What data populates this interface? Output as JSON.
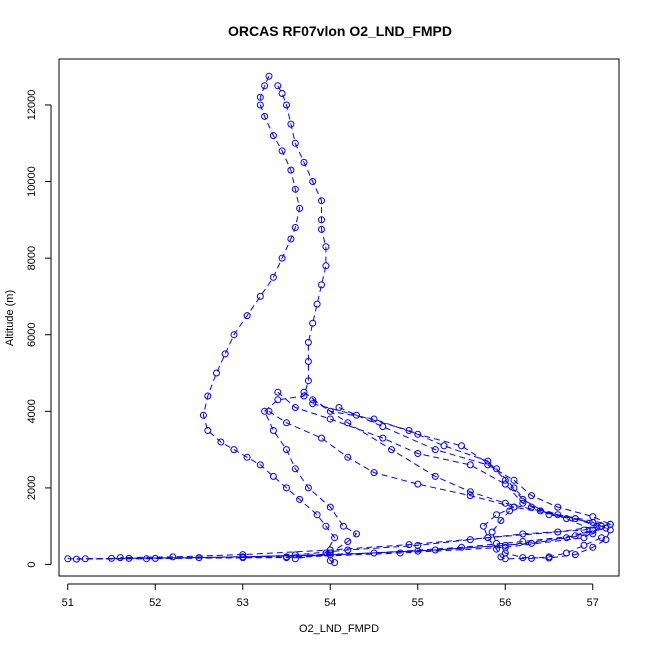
{
  "chart_data": {
    "type": "line",
    "title": "ORCAS RF07vlon O2_LND_FMPD",
    "xlabel": "O2_LND_FMPD",
    "ylabel": "Altitude (m)",
    "xlim": [
      50.9,
      57.3
    ],
    "ylim": [
      -300,
      13200
    ],
    "xticks": [
      51,
      52,
      53,
      54,
      55,
      56,
      57
    ],
    "yticks": [
      0,
      2000,
      4000,
      6000,
      8000,
      10000,
      12000
    ],
    "grid": false,
    "marker": "open-circle",
    "line_style": "dashed",
    "color": "#0000ff",
    "series": [
      {
        "values": [
          [
            53.3,
            12750
          ],
          [
            53.25,
            12500
          ],
          [
            53.2,
            12200
          ],
          [
            53.2,
            12000
          ],
          [
            53.25,
            11700
          ],
          [
            53.35,
            11200
          ],
          [
            53.45,
            10800
          ],
          [
            53.55,
            10300
          ],
          [
            53.6,
            9800
          ],
          [
            53.65,
            9300
          ],
          [
            53.6,
            8800
          ],
          [
            53.55,
            8500
          ],
          [
            53.45,
            8000
          ],
          [
            53.35,
            7500
          ],
          [
            53.2,
            7000
          ],
          [
            53.05,
            6500
          ],
          [
            52.9,
            6000
          ],
          [
            52.8,
            5500
          ],
          [
            52.7,
            5000
          ],
          [
            52.6,
            4400
          ],
          [
            52.55,
            3900
          ],
          [
            52.6,
            3500
          ],
          [
            52.75,
            3200
          ],
          [
            52.9,
            3000
          ],
          [
            53.05,
            2800
          ],
          [
            53.2,
            2600
          ],
          [
            53.35,
            2300
          ],
          [
            53.5,
            2000
          ],
          [
            53.65,
            1700
          ],
          [
            53.85,
            1300
          ],
          [
            53.95,
            1000
          ],
          [
            54.05,
            700
          ],
          [
            53.95,
            300
          ],
          [
            54.0,
            100
          ],
          [
            54.05,
            50
          ]
        ]
      },
      {
        "values": [
          [
            53.4,
            12500
          ],
          [
            53.45,
            12300
          ],
          [
            53.5,
            12000
          ],
          [
            53.55,
            11500
          ],
          [
            53.6,
            11000
          ],
          [
            53.7,
            10500
          ],
          [
            53.8,
            10000
          ],
          [
            53.9,
            9500
          ],
          [
            53.9,
            9000
          ],
          [
            53.9,
            8750
          ],
          [
            53.95,
            8300
          ],
          [
            53.95,
            7800
          ],
          [
            53.9,
            7300
          ],
          [
            53.85,
            6800
          ],
          [
            53.8,
            6300
          ],
          [
            53.75,
            5800
          ],
          [
            53.75,
            5300
          ],
          [
            53.75,
            4800
          ],
          [
            53.7,
            4400
          ],
          [
            53.4,
            4300
          ],
          [
            53.25,
            4000
          ],
          [
            53.35,
            3500
          ],
          [
            53.5,
            3000
          ],
          [
            53.6,
            2500
          ],
          [
            53.75,
            2000
          ],
          [
            54.0,
            1500
          ],
          [
            54.15,
            1000
          ],
          [
            54.3,
            800
          ],
          [
            54.2,
            600
          ],
          [
            54.0,
            300
          ],
          [
            53.6,
            150
          ]
        ]
      },
      {
        "values": [
          [
            53.7,
            4500
          ],
          [
            54.0,
            4000
          ],
          [
            54.5,
            3800
          ],
          [
            55.0,
            3400
          ],
          [
            55.5,
            3100
          ],
          [
            55.9,
            2500
          ],
          [
            56.1,
            2000
          ],
          [
            56.3,
            1500
          ],
          [
            56.7,
            1200
          ],
          [
            57.0,
            900
          ],
          [
            56.7,
            700
          ],
          [
            56.0,
            500
          ],
          [
            55.0,
            350
          ],
          [
            53.5,
            200
          ],
          [
            51.9,
            150
          ],
          [
            51.1,
            140
          ]
        ]
      },
      {
        "values": [
          [
            53.8,
            4200
          ],
          [
            54.3,
            3900
          ],
          [
            54.9,
            3500
          ],
          [
            55.3,
            3100
          ],
          [
            55.8,
            2700
          ],
          [
            56.0,
            2200
          ],
          [
            56.2,
            1700
          ],
          [
            56.5,
            1300
          ],
          [
            57.0,
            1100
          ],
          [
            57.15,
            950
          ],
          [
            56.8,
            750
          ],
          [
            56.2,
            600
          ],
          [
            55.5,
            450
          ],
          [
            54.5,
            300
          ],
          [
            53.0,
            200
          ],
          [
            51.7,
            160
          ],
          [
            51.0,
            150
          ]
        ]
      },
      {
        "values": [
          [
            53.4,
            4500
          ],
          [
            53.6,
            4100
          ],
          [
            54.0,
            3800
          ],
          [
            54.6,
            3300
          ],
          [
            55.0,
            2900
          ],
          [
            55.6,
            2600
          ],
          [
            56.0,
            2100
          ],
          [
            56.2,
            1600
          ],
          [
            56.6,
            1300
          ],
          [
            57.2,
            1050
          ],
          [
            57.0,
            800
          ],
          [
            56.3,
            550
          ],
          [
            55.2,
            380
          ],
          [
            54.0,
            250
          ],
          [
            52.5,
            180
          ],
          [
            51.5,
            160
          ]
        ]
      },
      {
        "values": [
          [
            53.3,
            4000
          ],
          [
            53.5,
            3700
          ],
          [
            53.9,
            3300
          ],
          [
            54.2,
            2800
          ],
          [
            54.5,
            2400
          ],
          [
            55.0,
            2100
          ],
          [
            55.6,
            1800
          ],
          [
            56.1,
            1500
          ],
          [
            56.8,
            1200
          ],
          [
            57.1,
            1000
          ],
          [
            56.9,
            700
          ],
          [
            56.0,
            450
          ],
          [
            54.8,
            300
          ],
          [
            53.5,
            180
          ],
          [
            52.0,
            160
          ],
          [
            51.2,
            150
          ]
        ]
      },
      {
        "values": [
          [
            53.8,
            4300
          ],
          [
            54.2,
            3700
          ],
          [
            54.7,
            3000
          ],
          [
            55.2,
            2300
          ],
          [
            55.6,
            1900
          ],
          [
            56.0,
            1600
          ],
          [
            56.4,
            1400
          ],
          [
            56.8,
            1200
          ],
          [
            57.05,
            1000
          ],
          [
            56.6,
            850
          ],
          [
            55.8,
            700
          ],
          [
            54.9,
            520
          ],
          [
            54.0,
            380
          ],
          [
            53.0,
            260
          ],
          [
            52.2,
            200
          ],
          [
            51.6,
            180
          ]
        ]
      },
      {
        "values": [
          [
            54.1,
            4100
          ],
          [
            54.6,
            3600
          ],
          [
            55.2,
            3000
          ],
          [
            55.8,
            2600
          ],
          [
            56.1,
            2200
          ],
          [
            56.3,
            1800
          ],
          [
            56.6,
            1500
          ],
          [
            57.0,
            1250
          ],
          [
            57.2,
            1050
          ],
          [
            56.9,
            900
          ],
          [
            56.2,
            800
          ],
          [
            55.6,
            650
          ],
          [
            55.0,
            500
          ],
          [
            54.2,
            380
          ],
          [
            53.6,
            250
          ],
          [
            53.0,
            180
          ]
        ]
      },
      {
        "values": [
          [
            56.1,
            1500
          ],
          [
            55.9,
            1300
          ],
          [
            55.75,
            1000
          ],
          [
            55.8,
            700
          ],
          [
            55.9,
            400
          ],
          [
            55.95,
            200
          ],
          [
            56.0,
            150
          ],
          [
            56.3,
            160
          ],
          [
            56.5,
            200
          ],
          [
            56.7,
            300
          ],
          [
            56.9,
            500
          ],
          [
            57.1,
            700
          ]
        ]
      },
      {
        "values": [
          [
            56.05,
            1400
          ],
          [
            55.95,
            1150
          ],
          [
            55.85,
            850
          ],
          [
            55.9,
            550
          ],
          [
            56.0,
            300
          ],
          [
            56.2,
            180
          ],
          [
            56.5,
            170
          ],
          [
            56.8,
            260
          ],
          [
            57.0,
            450
          ],
          [
            57.15,
            650
          ],
          [
            57.2,
            900
          ]
        ]
      }
    ]
  }
}
